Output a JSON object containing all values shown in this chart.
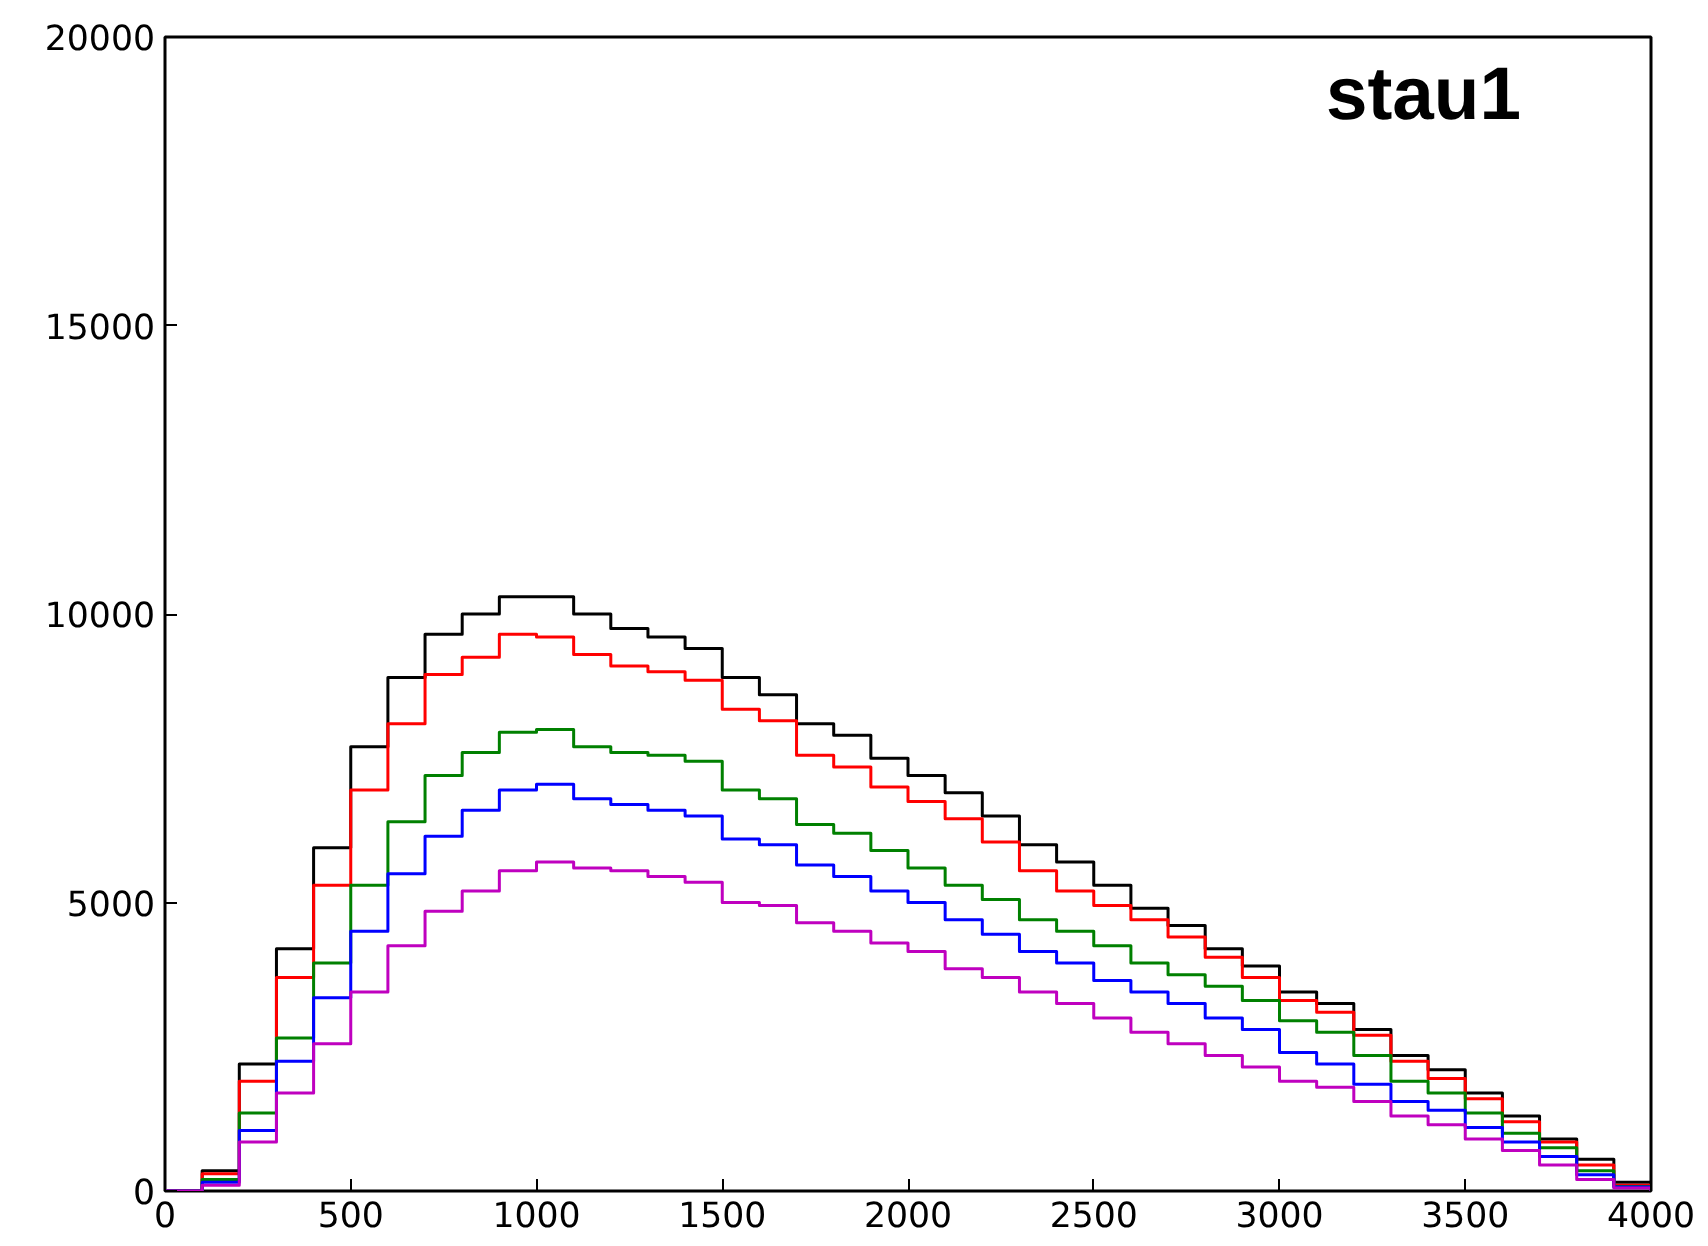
{
  "chart_data": {
    "type": "histogram",
    "annotations": [
      "stau1"
    ],
    "bins": [
      0,
      100,
      200,
      300,
      400,
      500,
      600,
      700,
      800,
      900,
      1000,
      1100,
      1200,
      1300,
      1400,
      1500,
      1600,
      1700,
      1800,
      1900,
      2000,
      2100,
      2200,
      2300,
      2400,
      2500,
      2600,
      2700,
      2800,
      2900,
      3000,
      3100,
      3200,
      3300,
      3400,
      3500,
      3600,
      3700,
      3800,
      3900,
      4000
    ],
    "series": [
      {
        "color": "#000000",
        "values": [
          0,
          350,
          2200,
          4200,
          5950,
          7700,
          8900,
          9650,
          10000,
          10300,
          10300,
          10000,
          9750,
          9600,
          9400,
          8900,
          8600,
          8100,
          7900,
          7500,
          7200,
          6900,
          6500,
          6000,
          5700,
          5300,
          4900,
          4600,
          4200,
          3900,
          3450,
          3250,
          2800,
          2350,
          2100,
          1700,
          1300,
          900,
          550,
          150
        ]
      },
      {
        "color": "#ff0000",
        "values": [
          0,
          300,
          1900,
          3700,
          5300,
          6950,
          8100,
          8950,
          9250,
          9650,
          9600,
          9300,
          9100,
          9000,
          8850,
          8350,
          8150,
          7550,
          7350,
          7000,
          6750,
          6450,
          6050,
          5550,
          5200,
          4950,
          4700,
          4400,
          4050,
          3700,
          3300,
          3100,
          2700,
          2250,
          1950,
          1600,
          1200,
          850,
          450,
          100
        ]
      },
      {
        "color": "#008000",
        "values": [
          0,
          200,
          1350,
          2650,
          3950,
          5300,
          6400,
          7200,
          7600,
          7950,
          8000,
          7700,
          7600,
          7550,
          7450,
          6950,
          6800,
          6350,
          6200,
          5900,
          5600,
          5300,
          5050,
          4700,
          4500,
          4250,
          3950,
          3750,
          3550,
          3300,
          2950,
          2750,
          2350,
          1900,
          1700,
          1350,
          1000,
          750,
          350,
          80
        ]
      },
      {
        "color": "#0000ff",
        "values": [
          0,
          150,
          1050,
          2250,
          3350,
          4500,
          5500,
          6150,
          6600,
          6950,
          7050,
          6800,
          6700,
          6600,
          6500,
          6100,
          6000,
          5650,
          5450,
          5200,
          5000,
          4700,
          4450,
          4150,
          3950,
          3650,
          3450,
          3250,
          3000,
          2800,
          2400,
          2200,
          1850,
          1550,
          1400,
          1100,
          850,
          600,
          280,
          70
        ]
      },
      {
        "color": "#bf00bf",
        "values": [
          0,
          100,
          850,
          1700,
          2550,
          3450,
          4250,
          4850,
          5200,
          5550,
          5700,
          5600,
          5550,
          5450,
          5350,
          5000,
          4950,
          4650,
          4500,
          4300,
          4150,
          3850,
          3700,
          3450,
          3250,
          3000,
          2750,
          2550,
          2350,
          2150,
          1900,
          1800,
          1550,
          1300,
          1150,
          900,
          700,
          450,
          200,
          50
        ]
      }
    ],
    "xlim": [
      0,
      4000
    ],
    "ylim": [
      0,
      20000
    ],
    "xticks": [
      0,
      500,
      1000,
      1500,
      2000,
      2500,
      3000,
      3500,
      4000
    ],
    "yticks": [
      0,
      5000,
      10000,
      15000,
      20000
    ],
    "grid": false
  }
}
